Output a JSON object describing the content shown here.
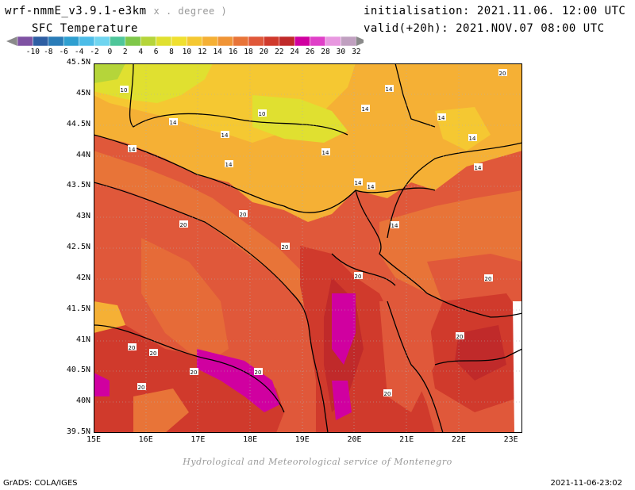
{
  "header": {
    "model": "wrf-nmmE_v3.9.1-e3km",
    "unit": "x . degree )",
    "variable": "SFC Temperature",
    "init": "initialisation: 2021.11.06. 12:00 UTC",
    "valid": "valid(+20h): 2021.NOV.07 08:00 UTC"
  },
  "colorbar": {
    "labels": [
      "-10",
      "-8",
      "-6",
      "-4",
      "-2",
      "0",
      "2",
      "4",
      "6",
      "8",
      "10",
      "12",
      "14",
      "16",
      "18",
      "20",
      "22",
      "24",
      "26",
      "28",
      "30",
      "32"
    ],
    "colors": [
      "#7f52a3",
      "#2e5ea3",
      "#2a7cb8",
      "#2f9fd0",
      "#4dbde8",
      "#70d5f0",
      "#4fc69a",
      "#80c84a",
      "#b5d53a",
      "#e0e030",
      "#f0e030",
      "#f5c832",
      "#f5b035",
      "#f09436",
      "#e87438",
      "#e0583a",
      "#d03a2c",
      "#c02a2a",
      "#d000a0",
      "#e040c8",
      "#e898e0",
      "#c0a0c0"
    ],
    "left_arrow_color": "#8a8a8a",
    "right_arrow_color": "#8a8a8a"
  },
  "map": {
    "lat_labels": [
      "45.5N",
      "45N",
      "44.5N",
      "44N",
      "43.5N",
      "43N",
      "42.5N",
      "42N",
      "41.5N",
      "41N",
      "40.5N",
      "40N",
      "39.5N"
    ],
    "lon_labels": [
      "15E",
      "16E",
      "17E",
      "18E",
      "19E",
      "20E",
      "21E",
      "22E",
      "23E"
    ],
    "contour_labels": [
      "10",
      "10",
      "14",
      "14",
      "14",
      "14",
      "14",
      "14",
      "14",
      "14",
      "14",
      "14",
      "14",
      "14",
      "14",
      "20",
      "20",
      "20",
      "20",
      "20",
      "20",
      "20",
      "20",
      "20",
      "20",
      "20",
      "20",
      "20"
    ]
  },
  "footer": {
    "credit": "Hydrological and Meteorological service of Montenegro",
    "grads": "GrADS: COLA/IGES",
    "timestamp": "2021-11-06-23:02"
  }
}
